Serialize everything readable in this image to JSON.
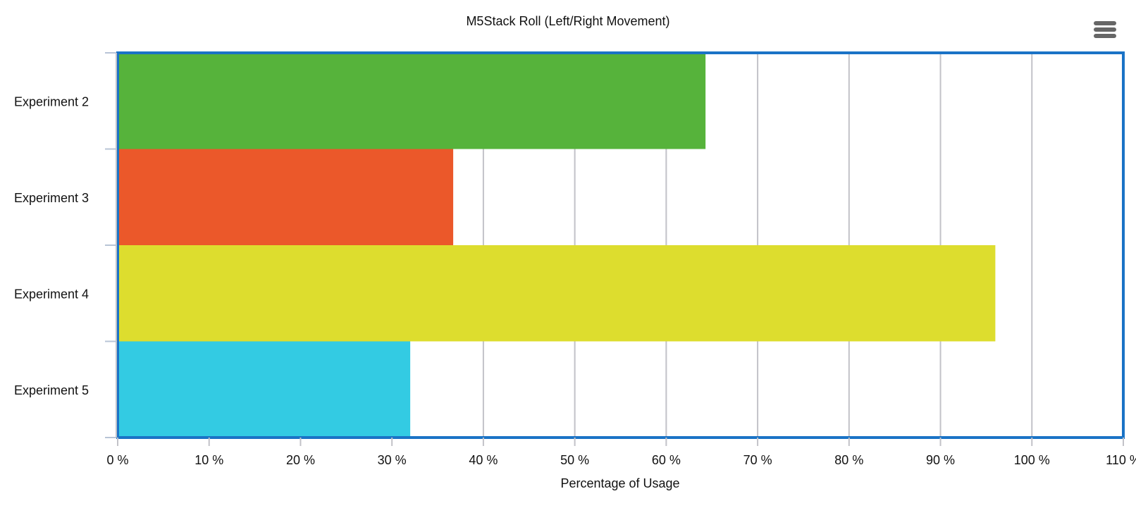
{
  "chart_data": {
    "type": "bar",
    "orientation": "horizontal",
    "title": "M5Stack Roll (Left/Right Movement)",
    "xlabel": "Percentage of Usage",
    "ylabel": "",
    "categories": [
      "Experiment 2",
      "Experiment 3",
      "Experiment 4",
      "Experiment 5"
    ],
    "values": [
      64.3,
      36.7,
      96.0,
      32.0
    ],
    "bar_colors": [
      "#56b33b",
      "#eb582a",
      "#dddd2e",
      "#33cbe3"
    ],
    "xlim": [
      0,
      110
    ],
    "xticks": [
      0,
      10,
      20,
      30,
      40,
      50,
      60,
      70,
      80,
      90,
      100,
      110
    ],
    "tick_suffix": " %",
    "grid": "vertical",
    "legend": "none",
    "plot_border_color": "#1a73c6"
  },
  "toolbar": {
    "menu_icon": "hamburger-menu-icon"
  }
}
